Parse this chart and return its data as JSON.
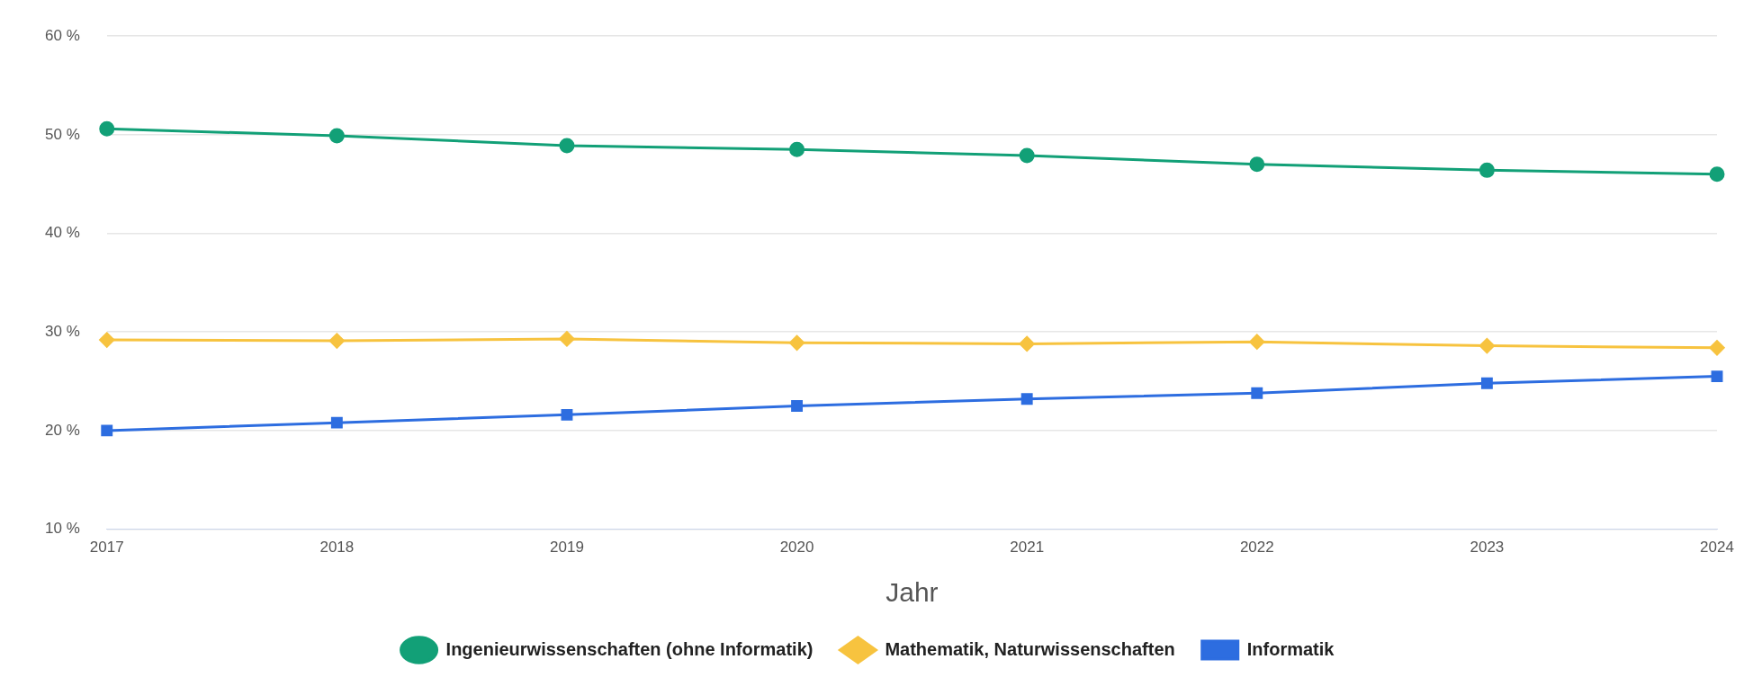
{
  "chart_data": {
    "type": "line",
    "xlabel": "Jahr",
    "categories": [
      "2017",
      "2018",
      "2019",
      "2020",
      "2021",
      "2022",
      "2023",
      "2024"
    ],
    "series": [
      {
        "name": "Ingenieurwissenschaften (ohne Informatik)",
        "color": "#12a077",
        "marker": "circle",
        "values": [
          50.6,
          49.9,
          48.9,
          48.5,
          47.9,
          47.0,
          46.4,
          46.0
        ]
      },
      {
        "name": "Mathematik, Naturwissenschaften",
        "color": "#f7c33f",
        "marker": "diamond",
        "values": [
          29.2,
          29.1,
          29.3,
          28.9,
          28.8,
          29.0,
          28.6,
          28.4
        ]
      },
      {
        "name": "Informatik",
        "color": "#2d6de0",
        "marker": "square",
        "values": [
          20.0,
          20.8,
          21.6,
          22.5,
          23.2,
          23.8,
          24.8,
          25.5
        ]
      }
    ],
    "ylim": [
      10,
      60
    ],
    "yticks": [
      {
        "value": 10,
        "label": "10 %"
      },
      {
        "value": 20,
        "label": "20 %"
      },
      {
        "value": 30,
        "label": "30 %"
      },
      {
        "value": 40,
        "label": "40 %"
      },
      {
        "value": 50,
        "label": "50 %"
      },
      {
        "value": 60,
        "label": "60 %"
      }
    ],
    "grid": "y",
    "legend": "bottom"
  }
}
